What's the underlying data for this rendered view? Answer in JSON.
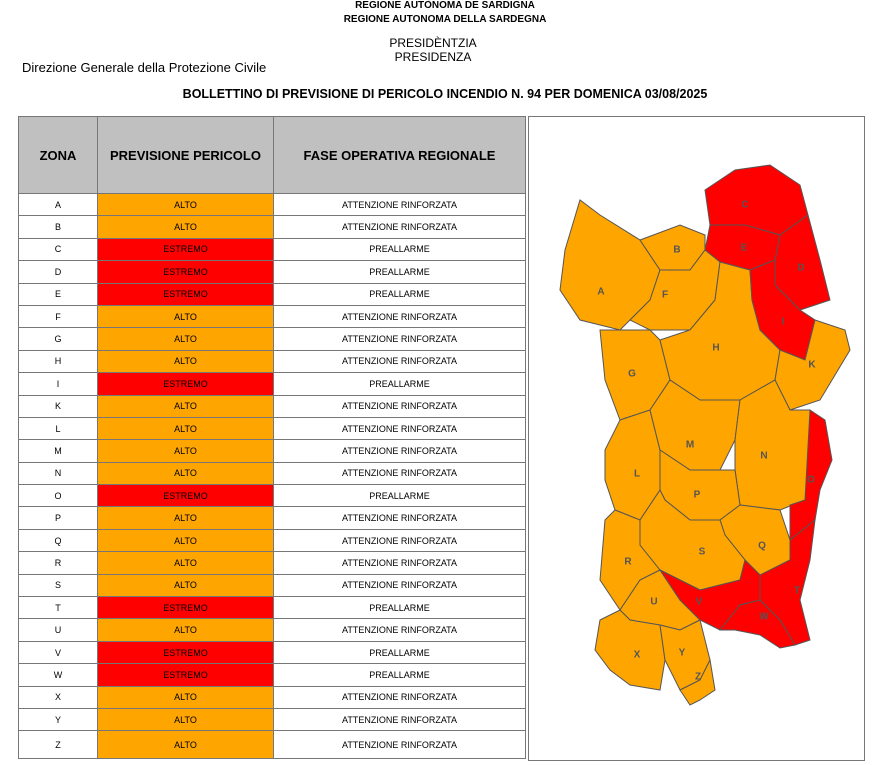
{
  "header": {
    "line1": "REGIONE AUTÒNOMA DE SARDIGNA",
    "line2": "REGIONE AUTONOMA DELLA SARDEGNA",
    "office1": "PRESIDÈNTZIA",
    "office2": "PRESIDENZA",
    "department": "Direzione Generale della Protezione Civile",
    "title": "BOLLETTINO DI PREVISIONE DI PERICOLO INCENDIO N. 94 PER DOMENICA 03/08/2025"
  },
  "table": {
    "columns": [
      "ZONA",
      "PREVISIONE PERICOLO",
      "FASE OPERATIVA REGIONALE"
    ],
    "rows": [
      [
        "A",
        "ALTO",
        "ATTENZIONE RINFORZATA"
      ],
      [
        "B",
        "ALTO",
        "ATTENZIONE RINFORZATA"
      ],
      [
        "C",
        "ESTREMO",
        "PREALLARME"
      ],
      [
        "D",
        "ESTREMO",
        "PREALLARME"
      ],
      [
        "E",
        "ESTREMO",
        "PREALLARME"
      ],
      [
        "F",
        "ALTO",
        "ATTENZIONE RINFORZATA"
      ],
      [
        "G",
        "ALTO",
        "ATTENZIONE RINFORZATA"
      ],
      [
        "H",
        "ALTO",
        "ATTENZIONE RINFORZATA"
      ],
      [
        "I",
        "ESTREMO",
        "PREALLARME"
      ],
      [
        "K",
        "ALTO",
        "ATTENZIONE RINFORZATA"
      ],
      [
        "L",
        "ALTO",
        "ATTENZIONE RINFORZATA"
      ],
      [
        "M",
        "ALTO",
        "ATTENZIONE RINFORZATA"
      ],
      [
        "N",
        "ALTO",
        "ATTENZIONE RINFORZATA"
      ],
      [
        "O",
        "ESTREMO",
        "PREALLARME"
      ],
      [
        "P",
        "ALTO",
        "ATTENZIONE RINFORZATA"
      ],
      [
        "Q",
        "ALTO",
        "ATTENZIONE RINFORZATA"
      ],
      [
        "R",
        "ALTO",
        "ATTENZIONE RINFORZATA"
      ],
      [
        "S",
        "ALTO",
        "ATTENZIONE RINFORZATA"
      ],
      [
        "T",
        "ESTREMO",
        "PREALLARME"
      ],
      [
        "U",
        "ALTO",
        "ATTENZIONE RINFORZATA"
      ],
      [
        "V",
        "ESTREMO",
        "PREALLARME"
      ],
      [
        "W",
        "ESTREMO",
        "PREALLARME"
      ],
      [
        "X",
        "ALTO",
        "ATTENZIONE RINFORZATA"
      ],
      [
        "Y",
        "ALTO",
        "ATTENZIONE RINFORZATA"
      ],
      [
        "Z",
        "ALTO",
        "ATTENZIONE RINFORZATA"
      ]
    ],
    "colors": {
      "ALTO": "#ffa500",
      "ESTREMO": "#ff0000"
    }
  }
}
